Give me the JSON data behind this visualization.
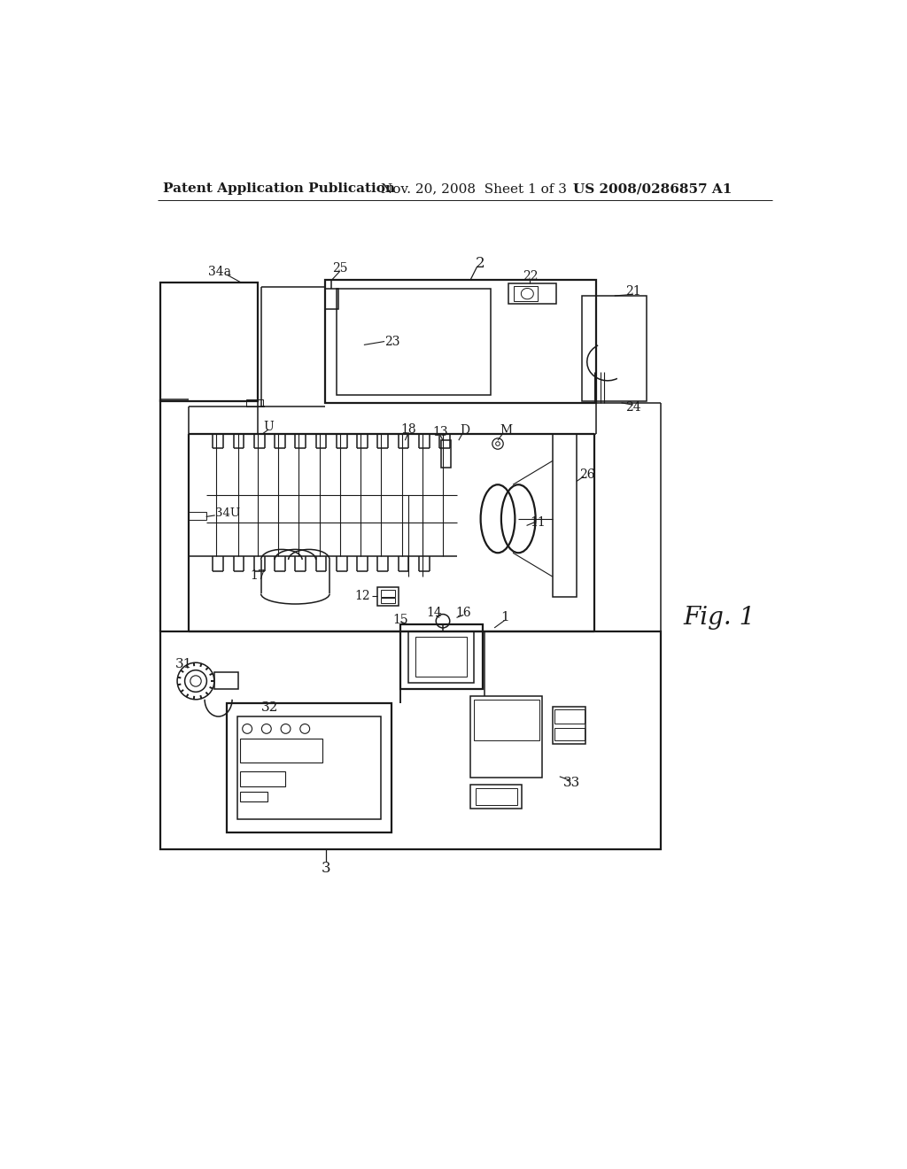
{
  "bg_color": "#ffffff",
  "header_left": "Patent Application Publication",
  "header_mid": "Nov. 20, 2008  Sheet 1 of 3",
  "header_right": "US 2008/0286857 A1",
  "fig_label": "Fig. 1",
  "line_color": "#1a1a1a",
  "lw": 1.1,
  "lw2": 1.6
}
